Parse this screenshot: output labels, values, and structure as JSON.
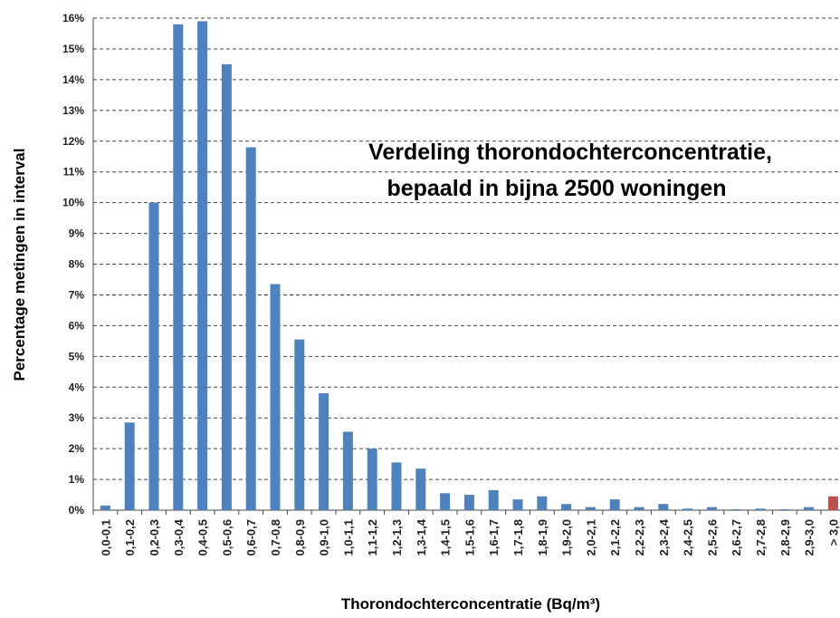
{
  "chart_data": {
    "type": "bar",
    "annotation": [
      "Verdeling thorondochterconcentratie,",
      "bepaald in bijna 2500 woningen"
    ],
    "x_label": "Thorondochterconcentratie (Bq/m³)",
    "y_label": "Percentage metingen in interval",
    "categories": [
      "0,0-0,1",
      "0,1-0,2",
      "0,2-0,3",
      "0,3-0,4",
      "0,4-0,5",
      "0,5-0,6",
      "0,6-0,7",
      "0,7-0,8",
      "0,8-0,9",
      "0,9-1,0",
      "1,0-1,1",
      "1,1-1,2",
      "1,2-1,3",
      "1,3-1,4",
      "1,4-1,5",
      "1,5-1,6",
      "1,6-1,7",
      "1,7-1,8",
      "1,8-1,9",
      "1,9-2,0",
      "2,0-2,1",
      "2,1-2,2",
      "2,2-2,3",
      "2,3-2,4",
      "2,4-2,5",
      "2,5-2,6",
      "2,6-2,7",
      "2,7-2,8",
      "2,8-2,9",
      "2,9-3,0",
      "> 3,0"
    ],
    "values": [
      0.15,
      2.85,
      10.0,
      15.8,
      15.9,
      14.5,
      11.8,
      7.35,
      5.55,
      3.8,
      2.55,
      2.0,
      1.55,
      1.35,
      0.55,
      0.5,
      0.65,
      0.35,
      0.45,
      0.2,
      0.1,
      0.35,
      0.1,
      0.2,
      0.05,
      0.1,
      0.03,
      0.05,
      0.03,
      0.1,
      0.45
    ],
    "colors": [
      "#4f81bd",
      "#4f81bd",
      "#4f81bd",
      "#4f81bd",
      "#4f81bd",
      "#4f81bd",
      "#4f81bd",
      "#4f81bd",
      "#4f81bd",
      "#4f81bd",
      "#4f81bd",
      "#4f81bd",
      "#4f81bd",
      "#4f81bd",
      "#4f81bd",
      "#4f81bd",
      "#4f81bd",
      "#4f81bd",
      "#4f81bd",
      "#4f81bd",
      "#4f81bd",
      "#4f81bd",
      "#4f81bd",
      "#4f81bd",
      "#4f81bd",
      "#4f81bd",
      "#4f81bd",
      "#4f81bd",
      "#4f81bd",
      "#4f81bd",
      "#c0504d"
    ],
    "ylim": [
      0,
      16
    ],
    "yticks": [
      {
        "value": 0,
        "label": "0%"
      },
      {
        "value": 1,
        "label": "1%"
      },
      {
        "value": 2,
        "label": "2%"
      },
      {
        "value": 3,
        "label": "3%"
      },
      {
        "value": 4,
        "label": "4%"
      },
      {
        "value": 5,
        "label": "5%"
      },
      {
        "value": 6,
        "label": "6%"
      },
      {
        "value": 7,
        "label": "7%"
      },
      {
        "value": 8,
        "label": "8%"
      },
      {
        "value": 9,
        "label": "9%"
      },
      {
        "value": 10,
        "label": "10%"
      },
      {
        "value": 11,
        "label": "11%"
      },
      {
        "value": 12,
        "label": "12%"
      },
      {
        "value": 13,
        "label": "13%"
      },
      {
        "value": 14,
        "label": "14%"
      },
      {
        "value": 15,
        "label": "15%"
      },
      {
        "value": 16,
        "label": "16%"
      }
    ],
    "grid": true
  }
}
